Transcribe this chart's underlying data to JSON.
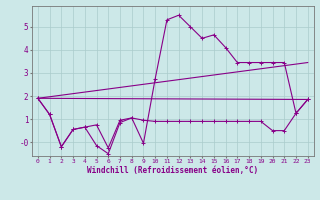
{
  "title": "",
  "xlabel": "Windchill (Refroidissement éolien,°C)",
  "background_color": "#cce8e8",
  "grid_color": "#aacccc",
  "line_color": "#880088",
  "xlim": [
    -0.5,
    23.5
  ],
  "ylim": [
    -0.6,
    5.9
  ],
  "yticks": [
    0,
    1,
    2,
    3,
    4,
    5
  ],
  "ytick_labels": [
    "-0",
    "1",
    "2",
    "3",
    "4",
    "5"
  ],
  "xticks": [
    0,
    1,
    2,
    3,
    4,
    5,
    6,
    7,
    8,
    9,
    10,
    11,
    12,
    13,
    14,
    15,
    16,
    17,
    18,
    19,
    20,
    21,
    22,
    23
  ],
  "series": [
    {
      "x": [
        0,
        1,
        2,
        3,
        4,
        5,
        6,
        7,
        8,
        9,
        10,
        11,
        12,
        13,
        14,
        15,
        16,
        17,
        18,
        19,
        20,
        21,
        22,
        23
      ],
      "y": [
        1.9,
        1.2,
        -0.2,
        0.55,
        0.65,
        0.75,
        -0.25,
        0.95,
        1.05,
        0.95,
        0.9,
        0.9,
        0.9,
        0.9,
        0.9,
        0.9,
        0.9,
        0.9,
        0.9,
        0.9,
        0.5,
        0.5,
        1.25,
        1.85
      ],
      "marker": true
    },
    {
      "x": [
        0,
        1,
        2,
        3,
        4,
        5,
        6,
        7,
        8,
        9,
        10,
        11,
        12,
        13,
        14,
        15,
        16,
        17,
        18,
        19,
        20,
        21,
        22,
        23
      ],
      "y": [
        1.9,
        1.2,
        -0.2,
        0.55,
        0.65,
        -0.15,
        -0.5,
        0.85,
        1.05,
        -0.05,
        2.75,
        5.3,
        5.5,
        5.0,
        4.5,
        4.65,
        4.1,
        3.45,
        3.45,
        3.45,
        3.45,
        3.45,
        1.25,
        1.85
      ],
      "marker": true
    },
    {
      "x": [
        0,
        23
      ],
      "y": [
        1.9,
        3.45
      ],
      "marker": false
    },
    {
      "x": [
        0,
        23
      ],
      "y": [
        1.9,
        1.85
      ],
      "marker": false
    }
  ]
}
